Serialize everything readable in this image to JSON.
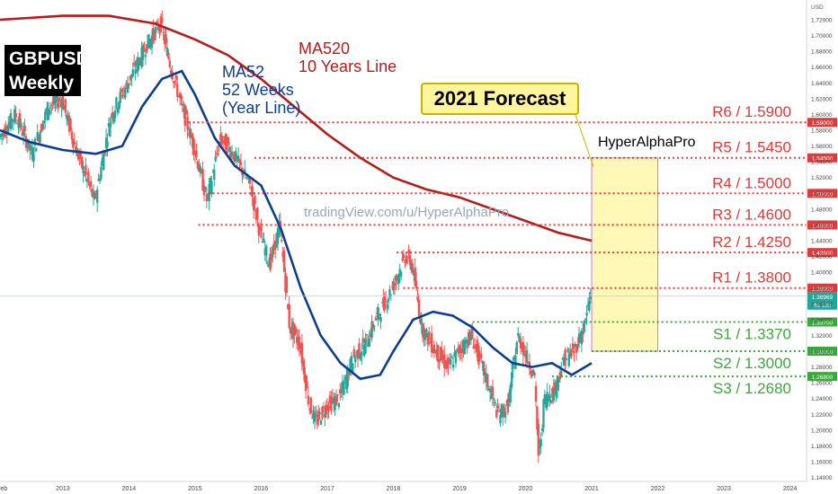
{
  "header": {
    "title_line1": "GBPUSD",
    "title_line2": "Weekly",
    "forecast_label": "2021 Forecast",
    "author": "HyperAlphaPro",
    "watermark": "tradingView.com/u/HyperAlphaPro",
    "ma520_line1": "MA520",
    "ma520_line2": "10 Years Line",
    "ma52_line1": "MA52",
    "ma52_line2": "52 Weeks",
    "ma52_line3": "(Year Line)"
  },
  "colors": {
    "resistance": "#e03a3a",
    "support": "#3aa83a",
    "ma520": "#b51c1c",
    "ma52": "#0d3d91",
    "up_candle": "#26a69a",
    "down_candle": "#ef5350",
    "forecast_fill": "#fff59d"
  },
  "chart_data": {
    "type": "line",
    "currency": "USD",
    "ylim": [
      1.135,
      1.745
    ],
    "xlim": [
      2012.05,
      2024.25
    ],
    "x_ticks": [
      "Feb",
      "2013",
      "2014",
      "2015",
      "2016",
      "2017",
      "2018",
      "2019",
      "2020",
      "2021",
      "2022",
      "2023",
      "2024"
    ],
    "x_tick_values": [
      2012.08,
      2013.0,
      2014.0,
      2015.0,
      2016.0,
      2017.0,
      2018.0,
      2019.0,
      2020.0,
      2021.0,
      2022.0,
      2023.0,
      2024.0
    ],
    "y_ticks": [
      "1.74000",
      "1.72000",
      "1.70000",
      "1.68000",
      "1.66000",
      "1.64000",
      "1.62000",
      "1.60000",
      "1.58000",
      "1.56000",
      "1.54000",
      "1.52000",
      "1.50000",
      "1.48000",
      "1.46000",
      "1.44000",
      "1.42000",
      "1.40000",
      "1.38000",
      "1.36000",
      "1.34000",
      "1.32000",
      "1.30000",
      "1.28000",
      "1.26000",
      "1.24000",
      "1.22000",
      "1.20000",
      "1.18000",
      "1.16000",
      "1.14000"
    ],
    "current_price": "1.36969",
    "current_countdown": "4d 18h",
    "levels": [
      {
        "name": "R6",
        "label": "R6 / 1.5900",
        "value": 1.59,
        "tag": "1.59000",
        "kind": "resistance",
        "x_start": 2014.9
      },
      {
        "name": "R5",
        "label": "R5 / 1.5450",
        "value": 1.545,
        "tag": "1.54500",
        "kind": "resistance",
        "x_start": 2015.9
      },
      {
        "name": "R4",
        "label": "R4 / 1.5000",
        "value": 1.5,
        "tag": "1.50000",
        "kind": "resistance",
        "x_start": 2015.2
      },
      {
        "name": "R3",
        "label": "R3 / 1.4600",
        "value": 1.46,
        "tag": "1.46000",
        "kind": "resistance",
        "x_start": 2015.05
      },
      {
        "name": "R2",
        "label": "R2 / 1.4250",
        "value": 1.425,
        "tag": "1.42500",
        "kind": "resistance",
        "x_start": 2018.05
      },
      {
        "name": "R1",
        "label": "R1 / 1.3800",
        "value": 1.38,
        "tag": "1.38000",
        "kind": "resistance",
        "x_start": 2018.15
      },
      {
        "name": "S1",
        "label": "S1 / 1.3370",
        "value": 1.337,
        "tag": "1.33700",
        "kind": "support",
        "x_start": 2019.2
      },
      {
        "name": "S2",
        "label": "S2 / 1.3000",
        "value": 1.3,
        "tag": "1.30000",
        "kind": "support",
        "x_start": 2021.0
      },
      {
        "name": "S3",
        "label": "S3 / 1.2680",
        "value": 1.268,
        "tag": "1.26800",
        "kind": "support",
        "x_start": 2020.4
      }
    ],
    "forecast_range": {
      "x_start": 2021.0,
      "x_end": 2022.0,
      "y_low": 1.3,
      "y_high": 1.545
    },
    "price_path": [
      [
        2012.05,
        1.57
      ],
      [
        2012.3,
        1.6
      ],
      [
        2012.55,
        1.55
      ],
      [
        2012.8,
        1.61
      ],
      [
        2013.0,
        1.62
      ],
      [
        2013.2,
        1.56
      ],
      [
        2013.5,
        1.49
      ],
      [
        2013.75,
        1.6
      ],
      [
        2014.0,
        1.64
      ],
      [
        2014.3,
        1.69
      ],
      [
        2014.5,
        1.715
      ],
      [
        2014.65,
        1.66
      ],
      [
        2014.85,
        1.6
      ],
      [
        2015.0,
        1.56
      ],
      [
        2015.2,
        1.49
      ],
      [
        2015.4,
        1.57
      ],
      [
        2015.6,
        1.55
      ],
      [
        2015.85,
        1.51
      ],
      [
        2016.0,
        1.45
      ],
      [
        2016.15,
        1.41
      ],
      [
        2016.3,
        1.46
      ],
      [
        2016.45,
        1.33
      ],
      [
        2016.6,
        1.31
      ],
      [
        2016.75,
        1.23
      ],
      [
        2016.85,
        1.21
      ],
      [
        2017.0,
        1.23
      ],
      [
        2017.2,
        1.24
      ],
      [
        2017.4,
        1.29
      ],
      [
        2017.6,
        1.31
      ],
      [
        2017.75,
        1.34
      ],
      [
        2018.0,
        1.38
      ],
      [
        2018.2,
        1.42
      ],
      [
        2018.3,
        1.41
      ],
      [
        2018.45,
        1.33
      ],
      [
        2018.65,
        1.3
      ],
      [
        2018.85,
        1.28
      ],
      [
        2019.0,
        1.3
      ],
      [
        2019.2,
        1.32
      ],
      [
        2019.4,
        1.27
      ],
      [
        2019.6,
        1.22
      ],
      [
        2019.75,
        1.23
      ],
      [
        2019.9,
        1.32
      ],
      [
        2020.0,
        1.3
      ],
      [
        2020.15,
        1.27
      ],
      [
        2020.22,
        1.16
      ],
      [
        2020.3,
        1.24
      ],
      [
        2020.45,
        1.25
      ],
      [
        2020.6,
        1.29
      ],
      [
        2020.75,
        1.3
      ],
      [
        2020.9,
        1.33
      ],
      [
        2021.0,
        1.37
      ]
    ],
    "series": [
      {
        "name": "MA520",
        "points": [
          [
            2012.05,
            1.72
          ],
          [
            2013.0,
            1.725
          ],
          [
            2013.7,
            1.725
          ],
          [
            2014.4,
            1.715
          ],
          [
            2015.0,
            1.695
          ],
          [
            2015.5,
            1.675
          ],
          [
            2016.0,
            1.645
          ],
          [
            2016.5,
            1.61
          ],
          [
            2017.0,
            1.575
          ],
          [
            2017.5,
            1.545
          ],
          [
            2018.0,
            1.52
          ],
          [
            2018.5,
            1.505
          ],
          [
            2019.0,
            1.495
          ],
          [
            2019.5,
            1.48
          ],
          [
            2020.0,
            1.465
          ],
          [
            2020.5,
            1.45
          ],
          [
            2021.0,
            1.44
          ]
        ]
      },
      {
        "name": "MA52",
        "points": [
          [
            2012.05,
            1.58
          ],
          [
            2012.5,
            1.565
          ],
          [
            2013.0,
            1.555
          ],
          [
            2013.5,
            1.55
          ],
          [
            2013.9,
            1.56
          ],
          [
            2014.2,
            1.61
          ],
          [
            2014.5,
            1.645
          ],
          [
            2014.8,
            1.655
          ],
          [
            2015.0,
            1.625
          ],
          [
            2015.3,
            1.57
          ],
          [
            2015.6,
            1.535
          ],
          [
            2016.0,
            1.51
          ],
          [
            2016.3,
            1.455
          ],
          [
            2016.6,
            1.38
          ],
          [
            2016.9,
            1.32
          ],
          [
            2017.2,
            1.285
          ],
          [
            2017.5,
            1.265
          ],
          [
            2017.8,
            1.27
          ],
          [
            2018.0,
            1.3
          ],
          [
            2018.3,
            1.34
          ],
          [
            2018.6,
            1.35
          ],
          [
            2018.9,
            1.345
          ],
          [
            2019.2,
            1.33
          ],
          [
            2019.5,
            1.305
          ],
          [
            2019.8,
            1.285
          ],
          [
            2020.1,
            1.28
          ],
          [
            2020.4,
            1.285
          ],
          [
            2020.7,
            1.27
          ],
          [
            2020.9,
            1.28
          ],
          [
            2021.0,
            1.285
          ]
        ]
      }
    ]
  }
}
